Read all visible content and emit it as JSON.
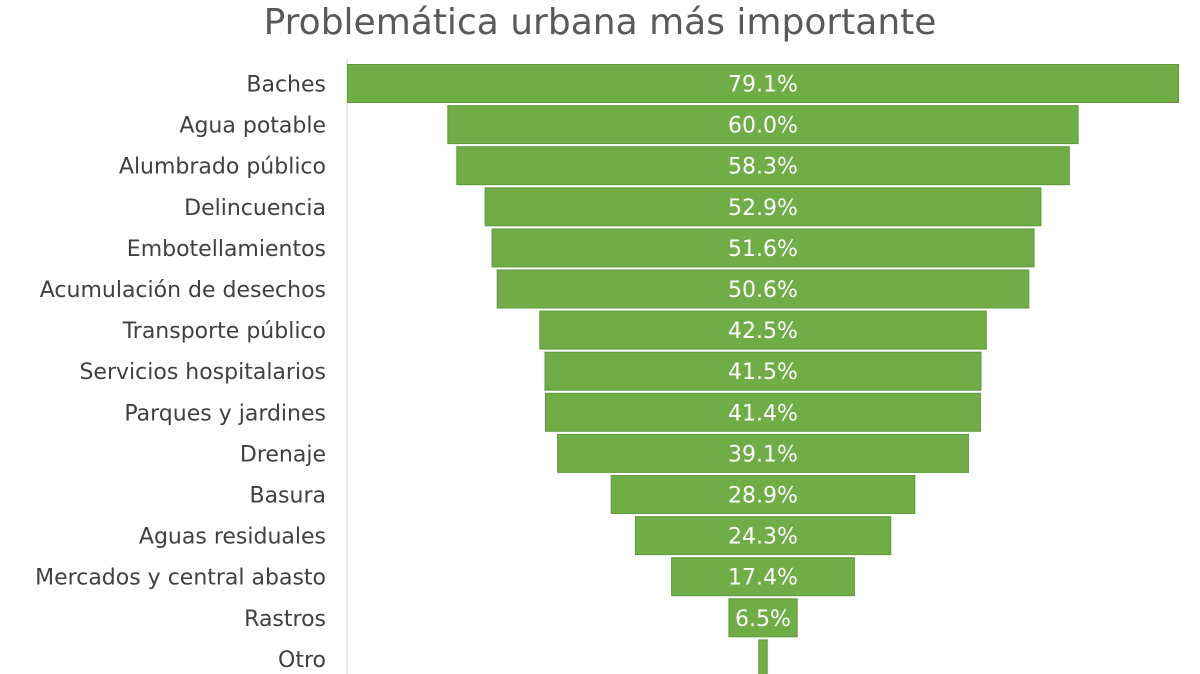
{
  "chart_data": {
    "type": "bar",
    "subtype": "funnel",
    "title": "Problemática urbana más importante",
    "categories": [
      "Baches",
      "Agua potable",
      "Alumbrado público",
      "Delincuencia",
      "Embotellamientos",
      "Acumulación de desechos",
      "Transporte público",
      "Servicios hospitalarios",
      "Parques y jardines",
      "Drenaje",
      "Basura",
      "Aguas residuales",
      "Mercados y central abasto",
      "Rastros",
      "Otro"
    ],
    "values": [
      79.1,
      60.0,
      58.3,
      52.9,
      51.6,
      50.6,
      42.5,
      41.5,
      41.4,
      39.1,
      28.9,
      24.3,
      17.4,
      6.5,
      0.8
    ],
    "value_labels": [
      "79.1%",
      "60.0%",
      "58.3%",
      "52.9%",
      "51.6%",
      "50.6%",
      "42.5%",
      "41.5%",
      "41.4%",
      "39.1%",
      "28.9%",
      "24.3%",
      "17.4%",
      "6.5%",
      ""
    ],
    "bar_color": "#70ad47",
    "bar_edge_color": "#5e9a3a",
    "axis_line_color": "#d9d9d9",
    "orientation": "horizontal",
    "alignment": "centered",
    "grid": false,
    "legend": "none"
  }
}
